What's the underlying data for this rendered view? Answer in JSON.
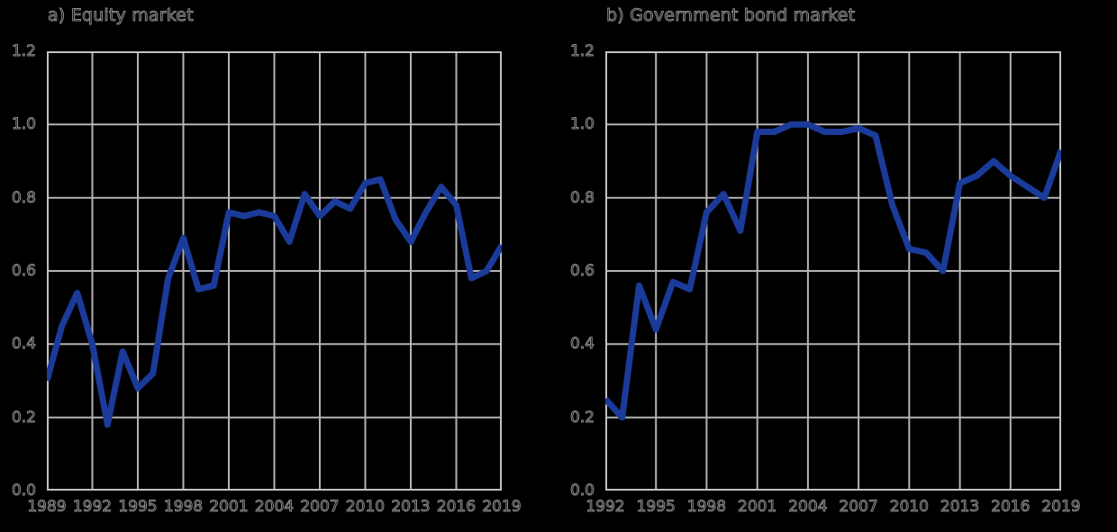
{
  "page": {
    "background": "#000000",
    "text_color": "#000000",
    "text_outline_color": "#8c8c8c"
  },
  "chart_data": [
    {
      "type": "line",
      "title": "a) Equity market",
      "xlabel": "",
      "ylabel": "",
      "ylim": [
        0,
        1.2
      ],
      "yticks": [
        0,
        0.2,
        0.4,
        0.6,
        0.8,
        1,
        1.2
      ],
      "xticks": [
        1989,
        1992,
        1995,
        1998,
        2001,
        2004,
        2007,
        2010,
        2013,
        2016,
        2019
      ],
      "grid": true,
      "legend": "none",
      "grid_color": "#b3b3b3",
      "border_color": "#c2c2c2",
      "line_color": "#1b3b9a",
      "line_width": 7,
      "x": [
        1989,
        1990,
        1991,
        1992,
        1993,
        1994,
        1995,
        1996,
        1997,
        1998,
        1999,
        2000,
        2001,
        2002,
        2003,
        2004,
        2005,
        2006,
        2007,
        2008,
        2009,
        2010,
        2011,
        2012,
        2013,
        2014,
        2015,
        2016,
        2017,
        2018,
        2019
      ],
      "series": [
        {
          "name": "Equity market",
          "values": [
            0.3,
            0.45,
            0.54,
            0.4,
            0.18,
            0.38,
            0.28,
            0.32,
            0.58,
            0.69,
            0.55,
            0.56,
            0.76,
            0.75,
            0.76,
            0.75,
            0.68,
            0.81,
            0.75,
            0.79,
            0.77,
            0.84,
            0.85,
            0.74,
            0.68,
            0.76,
            0.83,
            0.78,
            0.58,
            0.6,
            0.67
          ]
        }
      ]
    },
    {
      "type": "line",
      "title": "b) Government bond market",
      "xlabel": "",
      "ylabel": "",
      "ylim": [
        0,
        1.2
      ],
      "yticks": [
        0,
        0.2,
        0.4,
        0.6,
        0.8,
        1,
        1.2
      ],
      "xticks": [
        1992,
        1995,
        1998,
        2001,
        2004,
        2007,
        2010,
        2013,
        2016,
        2019
      ],
      "grid": true,
      "legend": "none",
      "grid_color": "#b3b3b3",
      "border_color": "#c2c2c2",
      "line_color": "#1b3b9a",
      "line_width": 7,
      "x": [
        1992,
        1993,
        1994,
        1995,
        1996,
        1997,
        1998,
        1999,
        2000,
        2001,
        2002,
        2003,
        2004,
        2005,
        2006,
        2007,
        2008,
        2009,
        2010,
        2011,
        2012,
        2013,
        2014,
        2015,
        2016,
        2017,
        2018,
        2019
      ],
      "series": [
        {
          "name": "Government bond market",
          "values": [
            0.25,
            0.2,
            0.56,
            0.44,
            0.57,
            0.55,
            0.76,
            0.81,
            0.71,
            0.98,
            0.98,
            1.0,
            1.0,
            0.98,
            0.98,
            0.99,
            0.97,
            0.78,
            0.66,
            0.65,
            0.6,
            0.84,
            0.86,
            0.9,
            0.86,
            0.83,
            0.8,
            0.93
          ]
        }
      ]
    }
  ]
}
